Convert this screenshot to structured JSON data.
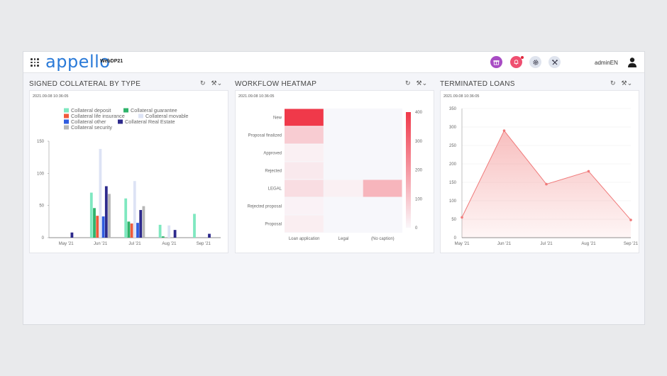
{
  "app": {
    "logo": "appello",
    "name": "WebDP21"
  },
  "header": {
    "user": "adminEN"
  },
  "colors": {
    "accent": "#2a7ad8",
    "gift": "#a84cc4",
    "bell": "#ef4f70",
    "heat": "#f0394a",
    "area": "#f28a8a"
  },
  "panels": [
    {
      "title": "SIGNED COLLATERAL BY TYPE",
      "timestamp": "2021.09.08 10:36:05",
      "chart_data": {
        "type": "bar",
        "categories": [
          "May '21",
          "Jun '21",
          "Jul '21",
          "Aug '21",
          "Sep '21"
        ],
        "ylim": [
          0,
          150
        ],
        "yticks": [
          0,
          50,
          100,
          150
        ],
        "legend_position": "top",
        "series": [
          {
            "name": "Collateral deposit",
            "color": "#7fe8c0",
            "values": [
              0,
              70,
              61,
              20,
              37
            ]
          },
          {
            "name": "Collateral guarantee",
            "color": "#2fb36b",
            "values": [
              0,
              46,
              25,
              2,
              0
            ]
          },
          {
            "name": "Collateral life insurance",
            "color": "#f05a3c",
            "values": [
              0,
              34,
              22,
              0,
              0
            ]
          },
          {
            "name": "Collateral movable",
            "color": "#dde3f5",
            "values": [
              0,
              138,
              88,
              19,
              0
            ]
          },
          {
            "name": "Collateral other",
            "color": "#2f5ce0",
            "values": [
              0,
              33,
              23,
              0,
              0
            ]
          },
          {
            "name": "Collateral Real Estate",
            "color": "#2d2a8c",
            "values": [
              8,
              80,
              43,
              12,
              6
            ]
          },
          {
            "name": "Collateral security",
            "color": "#b7b7b7",
            "values": [
              0,
              68,
              49,
              0,
              0
            ]
          }
        ]
      }
    },
    {
      "title": "WORKFLOW HEATMAP",
      "timestamp": "2021.09.08 10:36:05",
      "chart_data": {
        "type": "heatmap",
        "x": [
          "Loan application",
          "Legal",
          "(No caption)"
        ],
        "y": [
          "New",
          "Proposal finalized",
          "Approved",
          "Rejected",
          "LEGAL",
          "Rejected proposal",
          "Proposal"
        ],
        "scale_range": [
          0,
          400
        ],
        "scale_ticks": [
          0,
          100,
          200,
          300,
          400
        ],
        "values": [
          [
            400,
            0,
            0
          ],
          [
            90,
            0,
            0
          ],
          [
            15,
            0,
            0
          ],
          [
            30,
            0,
            0
          ],
          [
            55,
            15,
            140
          ],
          [
            10,
            0,
            0
          ],
          [
            20,
            0,
            0
          ]
        ]
      }
    },
    {
      "title": "TERMINATED LOANS",
      "timestamp": "2021.09.08 10:36:05",
      "chart_data": {
        "type": "area",
        "categories": [
          "May '21",
          "Jun '21",
          "Jul '21",
          "Aug '21",
          "Sep '21"
        ],
        "ylim": [
          0,
          350
        ],
        "yticks": [
          0,
          50,
          100,
          150,
          200,
          250,
          300,
          350
        ],
        "values": [
          55,
          290,
          145,
          180,
          48
        ]
      }
    }
  ]
}
